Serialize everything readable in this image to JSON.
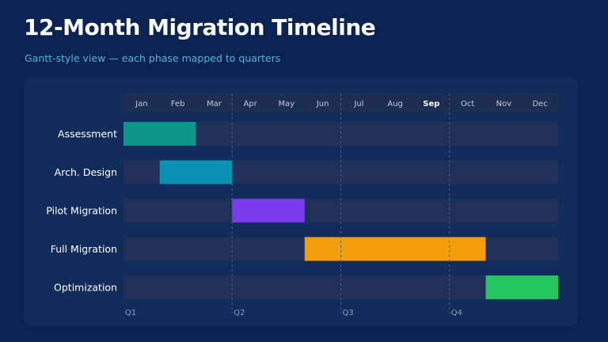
{
  "header": {
    "title": "12-Month Migration Timeline",
    "subtitle": "Gantt-style view — each phase mapped to quarters"
  },
  "colors": {
    "background": "#0b2350",
    "panel": "#112b5a",
    "track": "#1f3158",
    "month_header": "#1c2d52",
    "label_text": "#ffffff",
    "muted_text": "#c3cad8",
    "quarter_text": "#8d9ab3",
    "highlight_month": "#ffffff"
  },
  "chart_data": {
    "type": "gantt",
    "months": [
      "Jan",
      "Feb",
      "Mar",
      "Apr",
      "May",
      "Jun",
      "Jul",
      "Aug",
      "Sep",
      "Oct",
      "Nov",
      "Dec"
    ],
    "highlighted_month": "Sep",
    "quarters": [
      "Q1",
      "Q2",
      "Q3",
      "Q4"
    ],
    "tasks": [
      {
        "name": "Assessment",
        "start": "Jan",
        "end": "Feb",
        "color": "#0e9488"
      },
      {
        "name": "Arch. Design",
        "start": "Feb",
        "end": "Mar",
        "color": "#0891b2"
      },
      {
        "name": "Pilot Migration",
        "start": "Apr",
        "end": "May",
        "color": "#7c3aed"
      },
      {
        "name": "Full Migration",
        "start": "Jun",
        "end": "Oct",
        "color": "#f59e0b"
      },
      {
        "name": "Optimization",
        "start": "Nov",
        "end": "Dec",
        "color": "#22c55e"
      }
    ],
    "grid": "dashed quarter dividers"
  }
}
